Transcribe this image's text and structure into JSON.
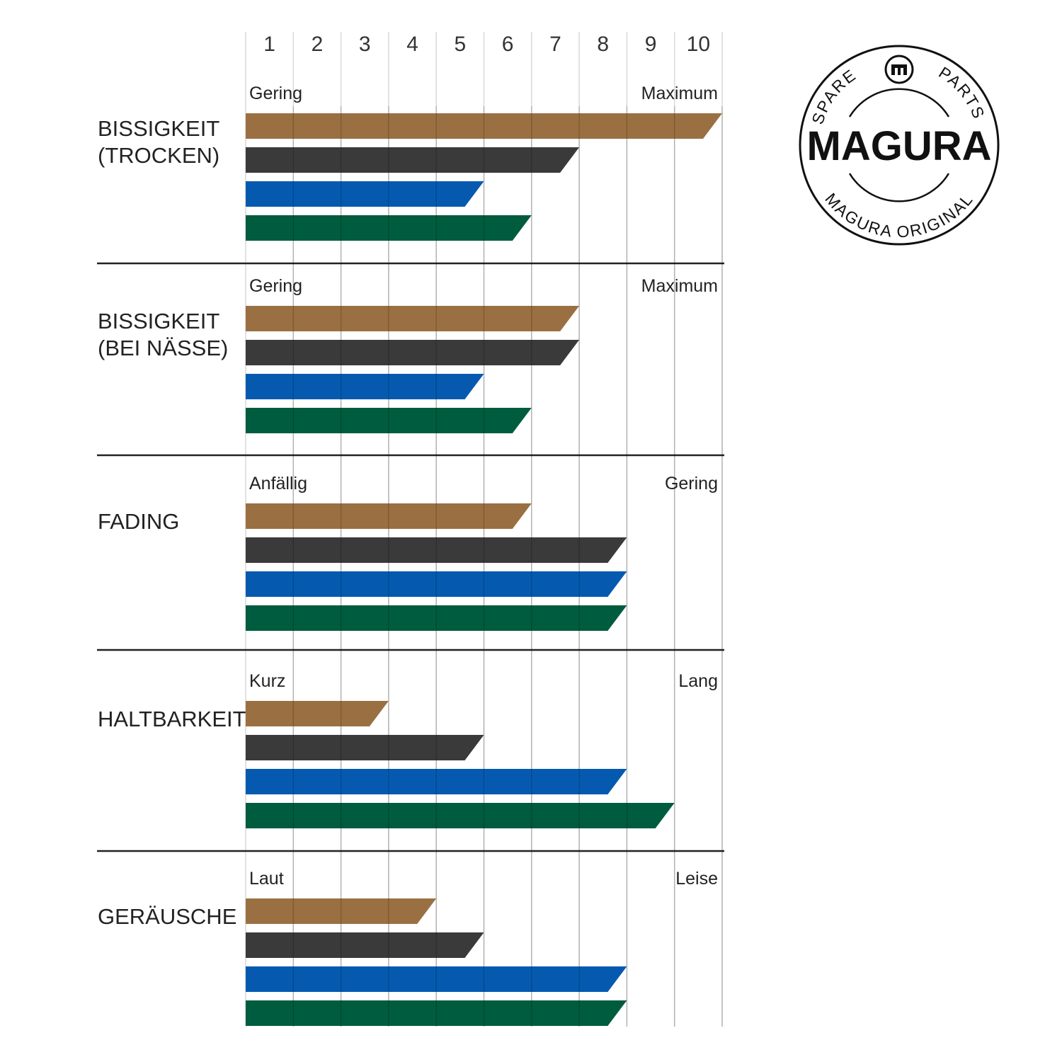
{
  "chart_data": {
    "type": "bar",
    "orientation": "horizontal",
    "x_ticks": [
      "1",
      "2",
      "3",
      "4",
      "5",
      "6",
      "7",
      "8",
      "9",
      "10"
    ],
    "xlim": [
      0,
      10
    ],
    "grid": true,
    "colors": [
      "#9a7042",
      "#3a3a3a",
      "#055ab0",
      "#005c3e"
    ],
    "groups": [
      {
        "title_lines": [
          "BISSIGKEIT",
          "(TROCKEN)"
        ],
        "left_label": "Gering",
        "right_label": "Maximum",
        "values": [
          10,
          7,
          5,
          6
        ]
      },
      {
        "title_lines": [
          "BISSIGKEIT",
          "(BEI NÄSSE)"
        ],
        "left_label": "Gering",
        "right_label": "Maximum",
        "values": [
          7,
          7,
          5,
          6
        ]
      },
      {
        "title_lines": [
          "FADING"
        ],
        "left_label": "Anfällig",
        "right_label": "Gering",
        "values": [
          6,
          8,
          8,
          8
        ]
      },
      {
        "title_lines": [
          "HALTBARKEIT"
        ],
        "left_label": "Kurz",
        "right_label": "Lang",
        "values": [
          3,
          5,
          8,
          9
        ]
      },
      {
        "title_lines": [
          "GERÄUSCHE"
        ],
        "left_label": "Laut",
        "right_label": "Leise",
        "values": [
          4,
          5,
          8,
          8
        ]
      }
    ]
  },
  "logo": {
    "wordmark": "MAGURA",
    "ring_top_left": "SPARE",
    "ring_top_right": "PARTS",
    "ring_bottom": "MAGURA ORIGINAL",
    "badge_icon": "magura-m-icon"
  }
}
